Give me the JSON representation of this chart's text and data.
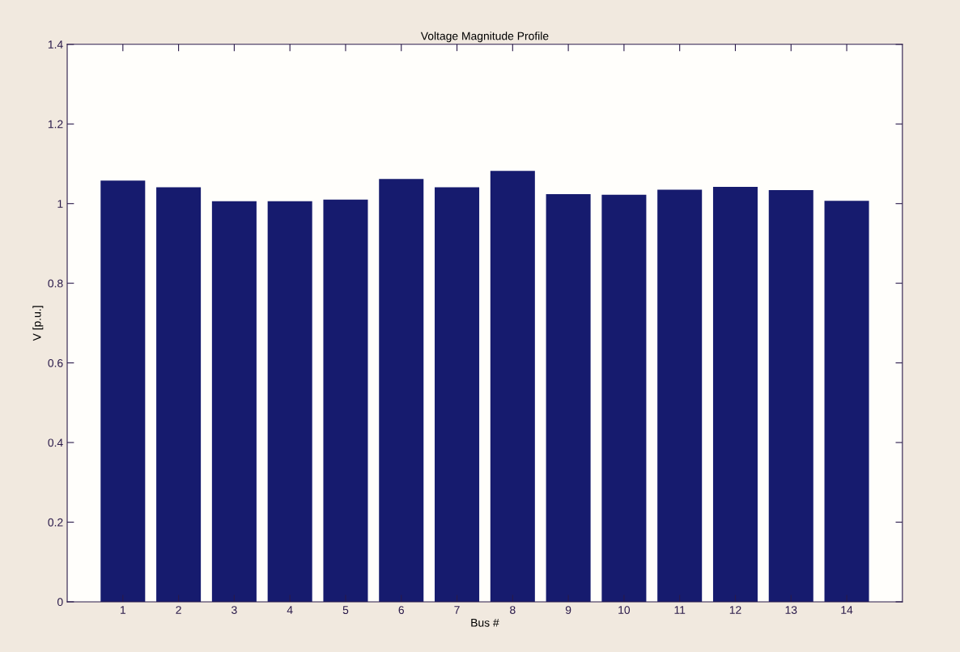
{
  "chart_data": {
    "type": "bar",
    "title": "Voltage Magnitude Profile",
    "xlabel": "Bus #",
    "ylabel": "V [p.u.]",
    "categories": [
      "1",
      "2",
      "3",
      "4",
      "5",
      "6",
      "7",
      "8",
      "9",
      "10",
      "11",
      "12",
      "13",
      "14"
    ],
    "values": [
      1.058,
      1.041,
      1.006,
      1.006,
      1.01,
      1.062,
      1.041,
      1.082,
      1.024,
      1.022,
      1.035,
      1.042,
      1.034,
      1.007
    ],
    "color": "#161b6e",
    "ylim": [
      0,
      1.4
    ],
    "yticks": [
      0,
      0.2,
      0.4,
      0.6,
      0.8,
      1,
      1.2,
      1.4
    ],
    "grid": false
  }
}
